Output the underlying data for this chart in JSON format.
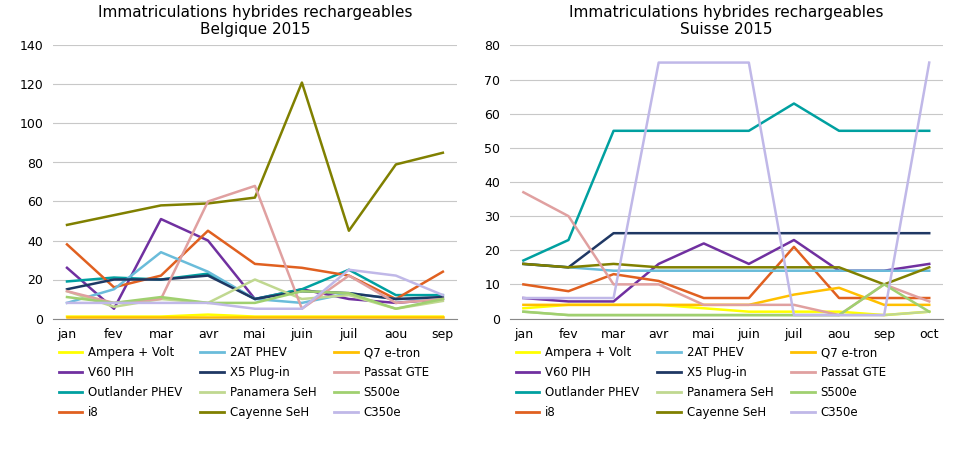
{
  "belgique": {
    "title": "Immatriculations hybrides rechargeables\nBelgique 2015",
    "months": [
      "jan",
      "fev",
      "mar",
      "avr",
      "mai",
      "juin",
      "juil",
      "aou",
      "sep"
    ],
    "ylim": [
      0,
      140
    ],
    "yticks": [
      0,
      20,
      40,
      60,
      80,
      100,
      120,
      140
    ],
    "series": {
      "Ampera + Volt": {
        "color": "#FFFF00",
        "data": [
          1,
          1,
          1,
          2,
          1,
          1,
          1,
          1,
          1
        ]
      },
      "V60 PIH": {
        "color": "#7030A0",
        "data": [
          26,
          5,
          51,
          40,
          10,
          15,
          10,
          8,
          10
        ]
      },
      "Outlander PHEV": {
        "color": "#00A0A0",
        "data": [
          19,
          21,
          20,
          23,
          10,
          15,
          25,
          12,
          12
        ]
      },
      "i8": {
        "color": "#E06020",
        "data": [
          38,
          16,
          22,
          45,
          28,
          26,
          22,
          10,
          24
        ]
      },
      "2AT PHEV": {
        "color": "#6ABCDA",
        "data": [
          8,
          15,
          34,
          24,
          10,
          8,
          13,
          10,
          10
        ]
      },
      "X5 Plug-in": {
        "color": "#1F3864",
        "data": [
          15,
          20,
          20,
          22,
          10,
          14,
          13,
          10,
          11
        ]
      },
      "Panamera SeH": {
        "color": "#C0D890",
        "data": [
          14,
          6,
          10,
          8,
          20,
          10,
          12,
          5,
          9
        ]
      },
      "Cayenne SeH": {
        "color": "#808000",
        "data": [
          48,
          53,
          58,
          59,
          62,
          121,
          45,
          79,
          85
        ]
      },
      "Q7 e-tron": {
        "color": "#FFC000",
        "data": [
          1,
          1,
          1,
          1,
          1,
          1,
          1,
          1,
          1
        ]
      },
      "Passat GTE": {
        "color": "#E0A0A0",
        "data": [
          14,
          8,
          10,
          60,
          68,
          5,
          22,
          8,
          10
        ]
      },
      "S500e": {
        "color": "#A0D070",
        "data": [
          11,
          8,
          11,
          8,
          8,
          14,
          13,
          5,
          10
        ]
      },
      "C350e": {
        "color": "#C0B8E8",
        "data": [
          8,
          8,
          8,
          8,
          5,
          5,
          25,
          22,
          12
        ]
      }
    }
  },
  "suisse": {
    "title": "Immatriculations hybrides rechargeables\nSuisse 2015",
    "months": [
      "jan",
      "fev",
      "mar",
      "avr",
      "mai",
      "juin",
      "juil",
      "aou",
      "sep",
      "oct"
    ],
    "ylim": [
      0,
      80
    ],
    "yticks": [
      0,
      10,
      20,
      30,
      40,
      50,
      60,
      70,
      80
    ],
    "series": {
      "Ampera + Volt": {
        "color": "#FFFF00",
        "data": [
          3,
          4,
          4,
          4,
          3,
          2,
          2,
          2,
          1,
          2
        ]
      },
      "V60 PIH": {
        "color": "#7030A0",
        "data": [
          6,
          5,
          5,
          16,
          22,
          16,
          23,
          14,
          14,
          16
        ]
      },
      "Outlander PHEV": {
        "color": "#00A0A0",
        "data": [
          17,
          23,
          55,
          55,
          55,
          55,
          63,
          55,
          55,
          55
        ]
      },
      "i8": {
        "color": "#E06020",
        "data": [
          10,
          8,
          13,
          11,
          6,
          6,
          21,
          6,
          6,
          6
        ]
      },
      "2AT PHEV": {
        "color": "#6ABCDA",
        "data": [
          16,
          15,
          14,
          14,
          14,
          14,
          14,
          14,
          14,
          14
        ]
      },
      "X5 Plug-in": {
        "color": "#1F3864",
        "data": [
          16,
          15,
          25,
          25,
          25,
          25,
          25,
          25,
          25,
          25
        ]
      },
      "Panamera SeH": {
        "color": "#C0D890",
        "data": [
          2,
          1,
          1,
          1,
          1,
          1,
          1,
          1,
          1,
          2
        ]
      },
      "Cayenne SeH": {
        "color": "#808000",
        "data": [
          16,
          15,
          16,
          15,
          15,
          15,
          15,
          15,
          10,
          15
        ]
      },
      "Q7 e-tron": {
        "color": "#FFC000",
        "data": [
          4,
          4,
          4,
          4,
          4,
          4,
          7,
          9,
          4,
          4
        ]
      },
      "Passat GTE": {
        "color": "#E0A0A0",
        "data": [
          37,
          30,
          10,
          10,
          4,
          4,
          4,
          1,
          10,
          5
        ]
      },
      "S500e": {
        "color": "#A0D070",
        "data": [
          2,
          1,
          1,
          1,
          1,
          1,
          1,
          1,
          10,
          2
        ]
      },
      "C350e": {
        "color": "#C0B8E8",
        "data": [
          6,
          6,
          6,
          75,
          75,
          75,
          1,
          1,
          1,
          75
        ]
      }
    }
  },
  "legend_order": [
    "Ampera + Volt",
    "V60 PIH",
    "Outlander PHEV",
    "i8",
    "2AT PHEV",
    "X5 Plug-in",
    "Panamera SeH",
    "Cayenne SeH",
    "Q7 e-tron",
    "Passat GTE",
    "S500e",
    "C350e"
  ],
  "background_color": "#FFFFFF",
  "grid_color": "#C8C8C8",
  "font_size_title": 11,
  "font_size_tick": 9,
  "font_size_legend": 8.5
}
